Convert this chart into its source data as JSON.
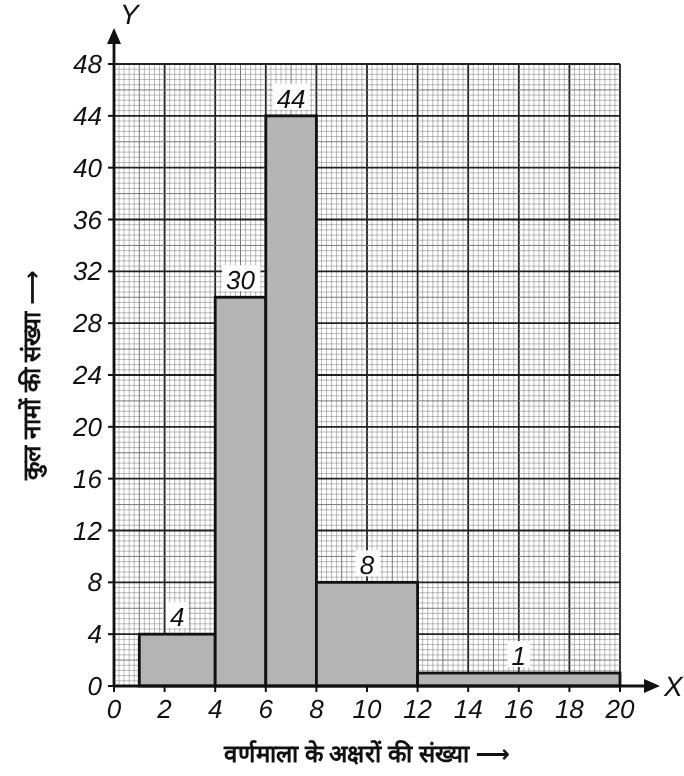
{
  "chart_data": {
    "type": "histogram",
    "xlabel": "वर्णमाला के अक्षरों की संख्या ⟶",
    "ylabel": "कुल नामों की संख्या ⟶",
    "bins": [
      1,
      4,
      6,
      8,
      12,
      20
    ],
    "values": [
      4,
      30,
      44,
      8,
      1
    ],
    "color": "#b4b4b4",
    "data_labels": true,
    "xlim": [
      0,
      20
    ],
    "xticks": [
      0,
      2,
      4,
      6,
      8,
      10,
      12,
      14,
      16,
      18,
      20
    ],
    "ylim": [
      0,
      48
    ],
    "yticks": [
      0,
      4,
      8,
      12,
      16,
      20,
      24,
      28,
      32,
      36,
      40,
      44,
      48
    ],
    "grid": true,
    "annotations": [
      "Y",
      "X"
    ]
  }
}
